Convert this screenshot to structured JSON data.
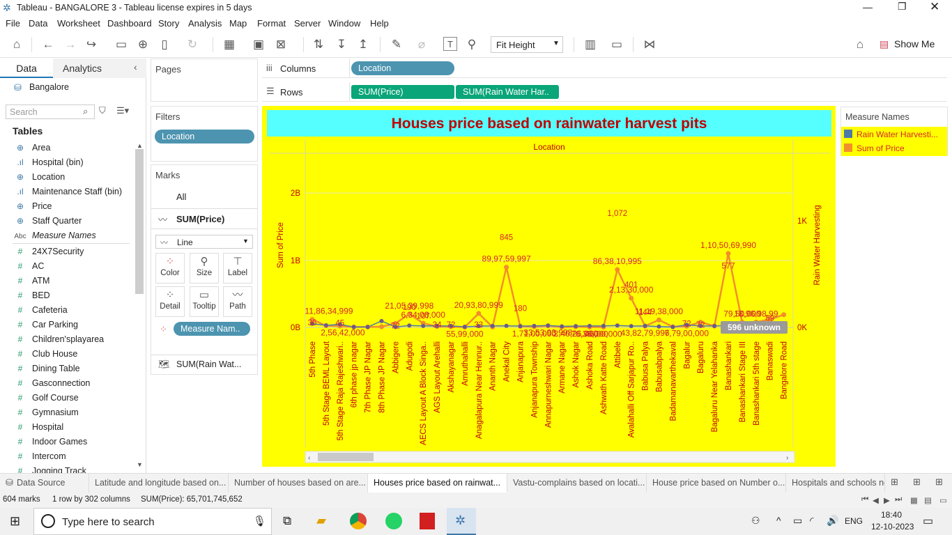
{
  "window": {
    "title": "Tableau - BANGALORE 3 - Tableau license expires in 5 days"
  },
  "menu": [
    "File",
    "Data",
    "Worksheet",
    "Dashboard",
    "Story",
    "Analysis",
    "Map",
    "Format",
    "Server",
    "Window",
    "Help"
  ],
  "toolbar": {
    "fit": "Fit Height",
    "show_me": "Show Me"
  },
  "datapane": {
    "tab_data": "Data",
    "tab_analytics": "Analytics",
    "source": "Bangalore",
    "search_placeholder": "Search",
    "tables_header": "Tables",
    "fields": [
      {
        "name": "Area",
        "type": "geo"
      },
      {
        "name": "Hospital (bin)",
        "type": "bin"
      },
      {
        "name": "Location",
        "type": "geo"
      },
      {
        "name": "Maintenance Staff (bin)",
        "type": "bin"
      },
      {
        "name": "Price",
        "type": "geo"
      },
      {
        "name": "Staff Quarter",
        "type": "geo"
      },
      {
        "name": "Measure Names",
        "type": "abc"
      },
      {
        "name": "24X7Security",
        "type": "measure"
      },
      {
        "name": "AC",
        "type": "measure"
      },
      {
        "name": "ATM",
        "type": "measure"
      },
      {
        "name": "BED",
        "type": "measure"
      },
      {
        "name": "Cafeteria",
        "type": "measure"
      },
      {
        "name": "Car Parking",
        "type": "measure"
      },
      {
        "name": "Children'splayarea",
        "type": "measure"
      },
      {
        "name": "Club House",
        "type": "measure"
      },
      {
        "name": "Dining Table",
        "type": "measure"
      },
      {
        "name": "Gasconnection",
        "type": "measure"
      },
      {
        "name": "Golf Course",
        "type": "measure"
      },
      {
        "name": "Gymnasium",
        "type": "measure"
      },
      {
        "name": "Hospital",
        "type": "measure"
      },
      {
        "name": "Indoor Games",
        "type": "measure"
      },
      {
        "name": "Intercom",
        "type": "measure"
      },
      {
        "name": "Jogging Track",
        "type": "measure"
      }
    ]
  },
  "shelves": {
    "pages": "Pages",
    "filters": "Filters",
    "filter_pill": "Location",
    "columns_label": "Columns",
    "rows_label": "Rows",
    "columns_pill": "Location",
    "rows_pills": [
      "SUM(Price)",
      "SUM(Rain Water Har.."
    ]
  },
  "marks": {
    "header": "Marks",
    "all": "All",
    "sum_price": "SUM(Price)",
    "mark_type": "Line",
    "buttons": [
      "Color",
      "Size",
      "Label",
      "Detail",
      "Tooltip",
      "Path"
    ],
    "color_pill": "Measure Nam..",
    "sum_rain": "SUM(Rain Wat..."
  },
  "legend": {
    "title": "Measure Names",
    "items": [
      {
        "label": "Rain Water Harvesti...",
        "color": "#4e79a7"
      },
      {
        "label": "Sum of Price",
        "color": "#f28e2b"
      }
    ]
  },
  "chart_data": {
    "type": "line",
    "title": "Houses price based on rainwater harvest pits",
    "x_header": "Location",
    "ylabel_left": "Sum of Price",
    "ylabel_right": "Rain Water Harvesting",
    "left_ticks": [
      "2B",
      "1B",
      "0B"
    ],
    "right_ticks": [
      "1K",
      "0K"
    ],
    "categories": [
      "5th Phase",
      "5th Stage BEML Layout",
      "5th Stage Raja Rajeshwari..",
      "6th phase jp nagar",
      "7th Phase JP Nagar",
      "8th Phase JP Nagar",
      "Abbigere",
      "Adugodi",
      "AECS Layout A Block Singa..",
      "AGS Layout Arehalli",
      "Akshayanagar",
      "Amruthahalli",
      "Anagalapura Near Hennur..",
      "Ananth Nagar",
      "Anekal City",
      "Anjanapura",
      "Anjanapura Township",
      "Annapurneshwari Nagar",
      "Armane Nagar",
      "Ashok Nagar",
      "Ashoka Road",
      "Ashwath Katte Road",
      "Attibele",
      "Avalahalli Off Sarjapur Ro..",
      "Babusa Palya",
      "Babusabpalya",
      "Badamanavarthekaval",
      "Bagalur",
      "Bagaluru",
      "Bagaluru Near Yelahanka",
      "Banashankari",
      "Banashankari Stage III",
      "Banashankari 5th stage",
      "Banaswadi",
      "Bangalore Road"
    ],
    "series": [
      {
        "name": "Sum of Price",
        "color": "#f28e2b",
        "values": [
          0.119,
          0.026,
          0.02,
          0.006,
          0.006,
          0.01,
          0.06,
          0.2,
          0.063,
          0.014,
          0.01,
          0.005,
          0.209,
          0.006,
          0.9,
          0.017,
          0.01,
          0.024,
          0.005,
          0.01,
          0.005,
          0.005,
          0.864,
          0.438,
          0.021,
          0.112,
          0.01,
          0.018,
          0.078,
          0.02,
          1.105,
          0.079,
          0.08,
          0.12,
          0.19
        ]
      },
      {
        "name": "Rain Water Harvesting",
        "color": "#4e79a7",
        "values": [
          34,
          20,
          28,
          4,
          4,
          60,
          4,
          18,
          14,
          14,
          14,
          6,
          12,
          14,
          15,
          12,
          14,
          18,
          10,
          12,
          14,
          14,
          18,
          12,
          14,
          8,
          4,
          24,
          14,
          14,
          18,
          14,
          16,
          12,
          10
        ]
      }
    ],
    "price_labels": [
      {
        "i": 0,
        "text": "11,86,34,999"
      },
      {
        "i": 1,
        "text": "2,56,42,000"
      },
      {
        "i": 7,
        "text": "21,05,39,998"
      },
      {
        "i": 8,
        "text": "6,34,08,000"
      },
      {
        "i": 12,
        "text": "20,93,80,999"
      },
      {
        "i": 11,
        "text": "55,99,000"
      },
      {
        "i": 14,
        "text": "89,97,59,997"
      },
      {
        "i": 16,
        "text": "1,71,00,000"
      },
      {
        "i": 17,
        "text": "33,53,93,998"
      },
      {
        "i": 19,
        "text": "2,40,26,000"
      },
      {
        "i": 20,
        "text": "76,38,000"
      },
      {
        "i": 21,
        "text": "46,00,000"
      },
      {
        "i": 22,
        "text": "86,38,10,995"
      },
      {
        "i": 23,
        "text": "2,13,30,000"
      },
      {
        "i": 24,
        "text": "43,82,79,996"
      },
      {
        "i": 25,
        "text": "11,19,38,000"
      },
      {
        "i": 27,
        "text": "7,79,00,000"
      },
      {
        "i": 30,
        "text": "1,10,50,69,990"
      },
      {
        "i": 32,
        "text": "18,96,98,99"
      },
      {
        "i": 31,
        "text": "79,50,000"
      }
    ],
    "rain_labels": [
      {
        "i": 0,
        "text": "36"
      },
      {
        "i": 2,
        "text": "45"
      },
      {
        "i": 6,
        "text": "72"
      },
      {
        "i": 7,
        "text": "190"
      },
      {
        "i": 8,
        "text": "107"
      },
      {
        "i": 9,
        "text": "34"
      },
      {
        "i": 10,
        "text": "72"
      },
      {
        "i": 12,
        "text": "33"
      },
      {
        "i": 14,
        "text": "845"
      },
      {
        "i": 15,
        "text": "180"
      },
      {
        "i": 22,
        "text": "1,072"
      },
      {
        "i": 23,
        "text": "401"
      },
      {
        "i": 24,
        "text": "144"
      },
      {
        "i": 27,
        "text": "72"
      },
      {
        "i": 28,
        "text": "72"
      },
      {
        "i": 30,
        "text": "577"
      },
      {
        "i": 33,
        "text": "89"
      }
    ],
    "unknown_badge": "596 unknown"
  },
  "sheet_tabs": [
    {
      "label": "Data Source",
      "active": false
    },
    {
      "label": "Latitude and longitude based on...",
      "active": false
    },
    {
      "label": "Number of houses based on are...",
      "active": false
    },
    {
      "label": "Houses price based on rainwat...",
      "active": true
    },
    {
      "label": "Vastu-complains based on locati...",
      "active": false
    },
    {
      "label": "House price based on Number o...",
      "active": false
    },
    {
      "label": "Hospitals and schools ne",
      "active": false
    }
  ],
  "status": {
    "marks": "604 marks",
    "rows": "1 row by 302 columns",
    "sum": "SUM(Price): 65,701,745,652"
  },
  "taskbar": {
    "search": "Type here to search",
    "lang": "ENG",
    "time": "18:40",
    "date": "12-10-2023"
  }
}
